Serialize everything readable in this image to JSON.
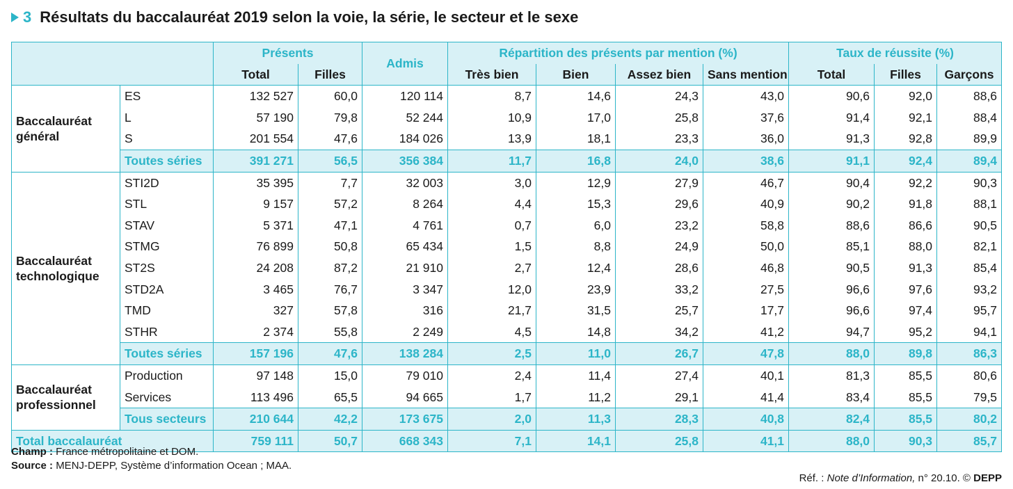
{
  "title": {
    "number": "3",
    "text": "Résultats du baccalauréat 2019 selon la voie, la série, le secteur et le sexe"
  },
  "headers": {
    "presents": "Présents",
    "admis": "Admis",
    "repartition": "Répartition des présents par mention (%)",
    "taux": "Taux de réussite (%)",
    "total": "Total",
    "filles": "Filles",
    "tres_bien": "Très bien",
    "bien": "Bien",
    "assez_bien": "Assez bien",
    "sans_mention": "Sans mention",
    "total2": "Total",
    "filles2": "Filles",
    "garcons": "Garçons"
  },
  "groups": [
    {
      "label": "Baccalauréat général",
      "rows": [
        [
          "ES",
          "132 527",
          "60,0",
          "120 114",
          "8,7",
          "14,6",
          "24,3",
          "43,0",
          "90,6",
          "92,0",
          "88,6"
        ],
        [
          "L",
          "57 190",
          "79,8",
          "52 244",
          "10,9",
          "17,0",
          "25,8",
          "37,6",
          "91,4",
          "92,1",
          "88,4"
        ],
        [
          "S",
          "201 554",
          "47,6",
          "184 026",
          "13,9",
          "18,1",
          "23,3",
          "36,0",
          "91,3",
          "92,8",
          "89,9"
        ]
      ],
      "subtotal": [
        "Toutes séries",
        "391 271",
        "56,5",
        "356 384",
        "11,7",
        "16,8",
        "24,0",
        "38,6",
        "91,1",
        "92,4",
        "89,4"
      ]
    },
    {
      "label": "Baccalauréat technologique",
      "rows": [
        [
          "STI2D",
          "35 395",
          "7,7",
          "32 003",
          "3,0",
          "12,9",
          "27,9",
          "46,7",
          "90,4",
          "92,2",
          "90,3"
        ],
        [
          "STL",
          "9 157",
          "57,2",
          "8 264",
          "4,4",
          "15,3",
          "29,6",
          "40,9",
          "90,2",
          "91,8",
          "88,1"
        ],
        [
          "STAV",
          "5 371",
          "47,1",
          "4 761",
          "0,7",
          "6,0",
          "23,2",
          "58,8",
          "88,6",
          "86,6",
          "90,5"
        ],
        [
          "STMG",
          "76 899",
          "50,8",
          "65 434",
          "1,5",
          "8,8",
          "24,9",
          "50,0",
          "85,1",
          "88,0",
          "82,1"
        ],
        [
          "ST2S",
          "24 208",
          "87,2",
          "21 910",
          "2,7",
          "12,4",
          "28,6",
          "46,8",
          "90,5",
          "91,3",
          "85,4"
        ],
        [
          "STD2A",
          "3 465",
          "76,7",
          "3 347",
          "12,0",
          "23,9",
          "33,2",
          "27,5",
          "96,6",
          "97,6",
          "93,2"
        ],
        [
          "TMD",
          "327",
          "57,8",
          "316",
          "21,7",
          "31,5",
          "25,7",
          "17,7",
          "96,6",
          "97,4",
          "95,7"
        ],
        [
          "STHR",
          "2 374",
          "55,8",
          "2 249",
          "4,5",
          "14,8",
          "34,2",
          "41,2",
          "94,7",
          "95,2",
          "94,1"
        ]
      ],
      "subtotal": [
        "Toutes séries",
        "157 196",
        "47,6",
        "138 284",
        "2,5",
        "11,0",
        "26,7",
        "47,8",
        "88,0",
        "89,8",
        "86,3"
      ]
    },
    {
      "label": "Baccalauréat professionnel",
      "rows": [
        [
          "Production",
          "97 148",
          "15,0",
          "79 010",
          "2,4",
          "11,4",
          "27,4",
          "40,1",
          "81,3",
          "85,5",
          "80,6"
        ],
        [
          "Services",
          "113 496",
          "65,5",
          "94 665",
          "1,7",
          "11,2",
          "29,1",
          "41,4",
          "83,4",
          "85,5",
          "79,5"
        ]
      ],
      "subtotal": [
        "Tous secteurs",
        "210 644",
        "42,2",
        "173 675",
        "2,0",
        "11,3",
        "28,3",
        "40,8",
        "82,4",
        "85,5",
        "80,2"
      ]
    }
  ],
  "grand_total": [
    "Total baccalauréat",
    "759 111",
    "50,7",
    "668 343",
    "7,1",
    "14,1",
    "25,8",
    "41,1",
    "88,0",
    "90,3",
    "85,7"
  ],
  "notes": {
    "champ_label": "Champ :",
    "champ_text": "France métropolitaine et DOM.",
    "source_label": "Source :",
    "source_text": "MENJ-DEPP, Système d’information Ocean ; MAA."
  },
  "ref": {
    "prefix": "Réf. :",
    "publication": "Note d’Information,",
    "suffix": "n° 20.10. ©",
    "brand": "DEPP"
  },
  "colors": {
    "accent": "#2cb5c8",
    "header_bg": "#d8f1f6"
  }
}
